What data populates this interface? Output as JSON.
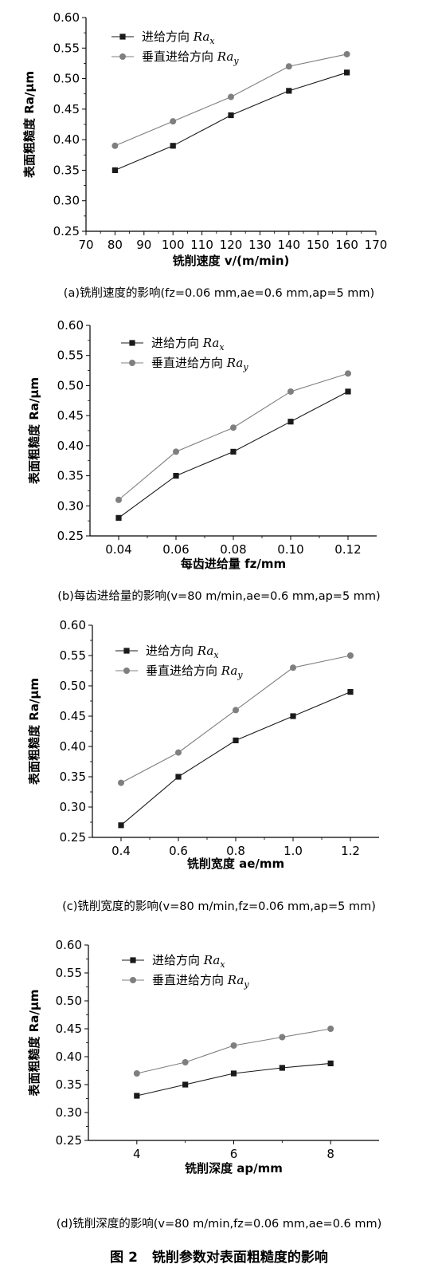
{
  "chart_data": [
    {
      "type": "line",
      "xlabel": "铣削速度 v/(m/min)",
      "ylabel": "表面粗糙度 Ra/μm",
      "xlim": [
        70,
        170
      ],
      "xticks": [
        "70",
        "80",
        "90",
        "100",
        "110",
        "120",
        "130",
        "140",
        "150",
        "160",
        "170"
      ],
      "ylim": [
        0.25,
        0.6
      ],
      "yticks": [
        "0.25",
        "0.30",
        "0.35",
        "0.40",
        "0.45",
        "0.50",
        "0.55",
        "0.60"
      ],
      "x": [
        80,
        100,
        120,
        140,
        160
      ],
      "legend_position": "top-left",
      "series": [
        {
          "name": "进给方向 Ra_x",
          "values": [
            0.35,
            0.39,
            0.44,
            0.48,
            0.51
          ],
          "color": "#1a1a1a",
          "marker": "square"
        },
        {
          "name": "垂直进给方向 Ra_y",
          "values": [
            0.39,
            0.43,
            0.47,
            0.52,
            0.54
          ],
          "color": "#7f7f7f",
          "marker": "circle"
        }
      ],
      "caption": "(a)铣削速度的影响(fz=0.06 mm,ae=0.6 mm,ap=5 mm)"
    },
    {
      "type": "line",
      "xlabel": "每齿进给量 fz/mm",
      "ylabel": "表面粗糙度 Ra/μm",
      "xlim": [
        0.03,
        0.13
      ],
      "xticks": [
        "0.04",
        "0.06",
        "0.08",
        "0.10",
        "0.12"
      ],
      "ylim": [
        0.25,
        0.6
      ],
      "yticks": [
        "0.25",
        "0.30",
        "0.35",
        "0.40",
        "0.45",
        "0.50",
        "0.55",
        "0.60"
      ],
      "x": [
        0.04,
        0.06,
        0.08,
        0.1,
        0.12
      ],
      "legend_position": "top-left",
      "series": [
        {
          "name": "进给方向 Ra_x",
          "values": [
            0.28,
            0.35,
            0.39,
            0.44,
            0.49
          ],
          "color": "#1a1a1a",
          "marker": "square"
        },
        {
          "name": "垂直进给方向 Ra_y",
          "values": [
            0.31,
            0.39,
            0.43,
            0.49,
            0.52
          ],
          "color": "#7f7f7f",
          "marker": "circle"
        }
      ],
      "caption": "(b)每齿进给量的影响(v=80 m/min,ae=0.6 mm,ap=5 mm)"
    },
    {
      "type": "line",
      "xlabel": "铣削宽度 ae/mm",
      "ylabel": "表面粗糙度 Ra/μm",
      "xlim": [
        0.3,
        1.3
      ],
      "xticks": [
        "0.4",
        "0.6",
        "0.8",
        "1.0",
        "1.2"
      ],
      "ylim": [
        0.25,
        0.6
      ],
      "yticks": [
        "0.25",
        "0.30",
        "0.35",
        "0.40",
        "0.45",
        "0.50",
        "0.55",
        "0.60"
      ],
      "x": [
        0.4,
        0.6,
        0.8,
        1.0,
        1.2
      ],
      "legend_position": "top-left",
      "series": [
        {
          "name": "进给方向 Ra_x",
          "values": [
            0.27,
            0.35,
            0.41,
            0.45,
            0.49
          ],
          "color": "#1a1a1a",
          "marker": "square"
        },
        {
          "name": "垂直进给方向 Ra_y",
          "values": [
            0.34,
            0.39,
            0.46,
            0.53,
            0.55
          ],
          "color": "#7f7f7f",
          "marker": "circle"
        }
      ],
      "caption": "(c)铣削宽度的影响(v=80 m/min,fz=0.06 mm,ap=5 mm)"
    },
    {
      "type": "line",
      "xlabel": "铣削深度 ap/mm",
      "ylabel": "表面粗糙度 Ra/μm",
      "xlim": [
        3,
        9
      ],
      "xticks": [
        "4",
        "6",
        "8"
      ],
      "ylim": [
        0.25,
        0.6
      ],
      "yticks": [
        "0.25",
        "0.30",
        "0.35",
        "0.40",
        "0.45",
        "0.50",
        "0.55",
        "0.60"
      ],
      "x": [
        4,
        5,
        6,
        7,
        8
      ],
      "legend_position": "top-left",
      "series": [
        {
          "name": "进给方向 Ra_x",
          "values": [
            0.33,
            0.35,
            0.37,
            0.38,
            0.388
          ],
          "color": "#1a1a1a",
          "marker": "square"
        },
        {
          "name": "垂直进给方向 Ra_y",
          "values": [
            0.37,
            0.39,
            0.42,
            0.435,
            0.45
          ],
          "color": "#7f7f7f",
          "marker": "circle"
        }
      ],
      "caption": "(d)铣削深度的影响(v=80 m/min,fz=0.06 mm,ae=0.6 mm)"
    }
  ],
  "figure": {
    "number": "图 2",
    "title": "铣削参数对表面粗糙度的影响"
  }
}
